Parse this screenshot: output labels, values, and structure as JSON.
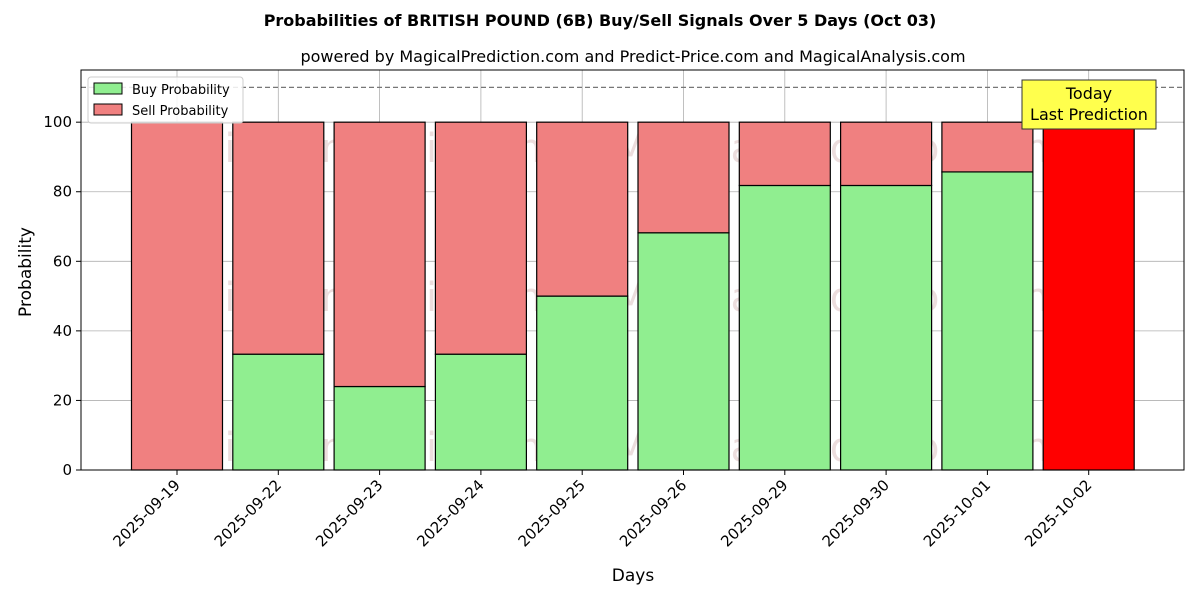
{
  "chart_data": {
    "type": "bar",
    "stacked": true,
    "title": "Probabilities of BRITISH POUND (6B) Buy/Sell Signals Over 5 Days (Oct 03)",
    "subtitle": "powered by MagicalPrediction.com and Predict-Price.com and MagicalAnalysis.com",
    "xlabel": "Days",
    "ylabel": "Probability",
    "ylim": [
      0,
      115
    ],
    "yticks": [
      0,
      20,
      40,
      60,
      80,
      100
    ],
    "grid": true,
    "legend_position": "top-left",
    "reference_line": 110,
    "categories": [
      "2025-09-19",
      "2025-09-22",
      "2025-09-23",
      "2025-09-24",
      "2025-09-25",
      "2025-09-26",
      "2025-09-29",
      "2025-09-30",
      "2025-10-01",
      "2025-10-02"
    ],
    "series": [
      {
        "name": "Buy Probability",
        "color": "#90ee90",
        "values": [
          0,
          33.3,
          24,
          33.3,
          50,
          68.2,
          81.8,
          81.8,
          85.7,
          0
        ]
      },
      {
        "name": "Sell Probability",
        "color": "#f08080",
        "values": [
          100,
          66.7,
          76,
          66.7,
          50,
          31.8,
          18.2,
          18.2,
          14.3,
          100
        ]
      }
    ],
    "highlight": {
      "category": "2025-10-02",
      "color": "#ff0000"
    },
    "annotation": {
      "lines": [
        "Today",
        "Last Prediction"
      ],
      "background": "#ffff4d"
    },
    "watermarks": [
      "MagicalAnalysis.com",
      "MagicalPrediction.com"
    ]
  }
}
